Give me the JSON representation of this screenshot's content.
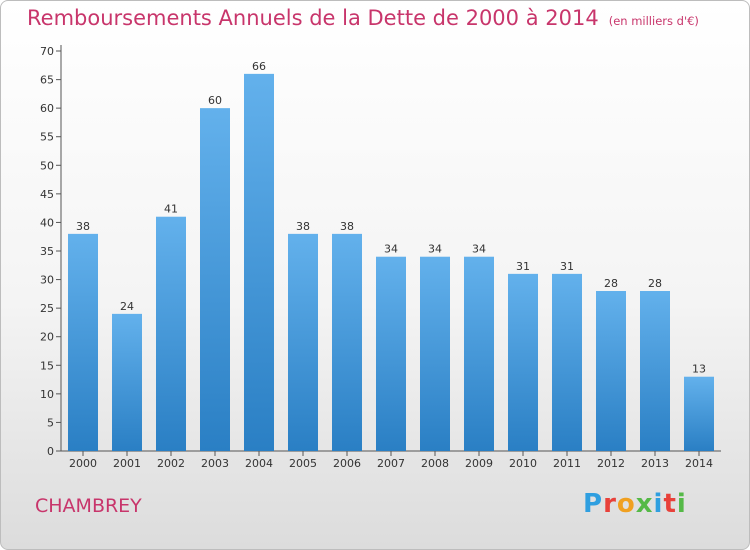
{
  "chart_data": {
    "type": "bar",
    "title": "Remboursements Annuels de la Dette de 2000 à 2014",
    "subtitle": "(en milliers d'€)",
    "categories": [
      "2000",
      "2001",
      "2002",
      "2003",
      "2004",
      "2005",
      "2006",
      "2007",
      "2008",
      "2009",
      "2010",
      "2011",
      "2012",
      "2013",
      "2014"
    ],
    "values": [
      38,
      24,
      41,
      60,
      66,
      38,
      38,
      34,
      34,
      34,
      31,
      31,
      28,
      28,
      13
    ],
    "ylim": [
      0,
      70
    ],
    "yticks": [
      0,
      5,
      10,
      15,
      20,
      25,
      30,
      35,
      40,
      45,
      50,
      55,
      60,
      65,
      70
    ],
    "grid": false,
    "colors": {
      "bar_top": "#63b1ec",
      "bar_bottom": "#2a7fc4",
      "title": "#c8356b",
      "axis": "#555555"
    }
  },
  "footer": {
    "city": "CHAMBREY",
    "logo_text": "Proxiti",
    "logo_colors": [
      "#2f9fe0",
      "#e8413a",
      "#f0a020",
      "#55b947",
      "#2f9fe0",
      "#e8413a",
      "#55b947"
    ]
  }
}
